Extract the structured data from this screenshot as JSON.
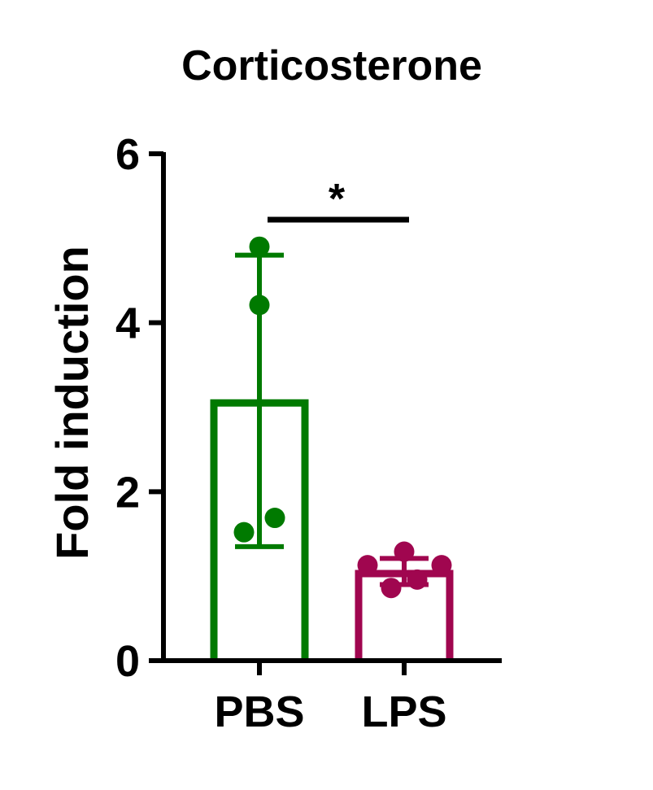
{
  "chart_data": {
    "type": "bar",
    "title": "Corticosterone",
    "xlabel": "",
    "ylabel": "Fold induction",
    "ylim": [
      0,
      6
    ],
    "yticks": [
      0,
      2,
      4,
      6
    ],
    "categories": [
      "PBS",
      "LPS"
    ],
    "values": [
      3.05,
      1.03
    ],
    "error_bars": [
      {
        "low": 1.35,
        "high": 4.8
      },
      {
        "low": 0.9,
        "high": 1.21
      }
    ],
    "points": [
      [
        4.9,
        4.21,
        1.52,
        1.69
      ],
      [
        1.29,
        1.13,
        1.13,
        0.96,
        0.86
      ]
    ],
    "colors": [
      "#007A00",
      "#A0064F"
    ],
    "significance": {
      "label": "*",
      "between": [
        "PBS",
        "LPS"
      ]
    },
    "grid": false
  }
}
